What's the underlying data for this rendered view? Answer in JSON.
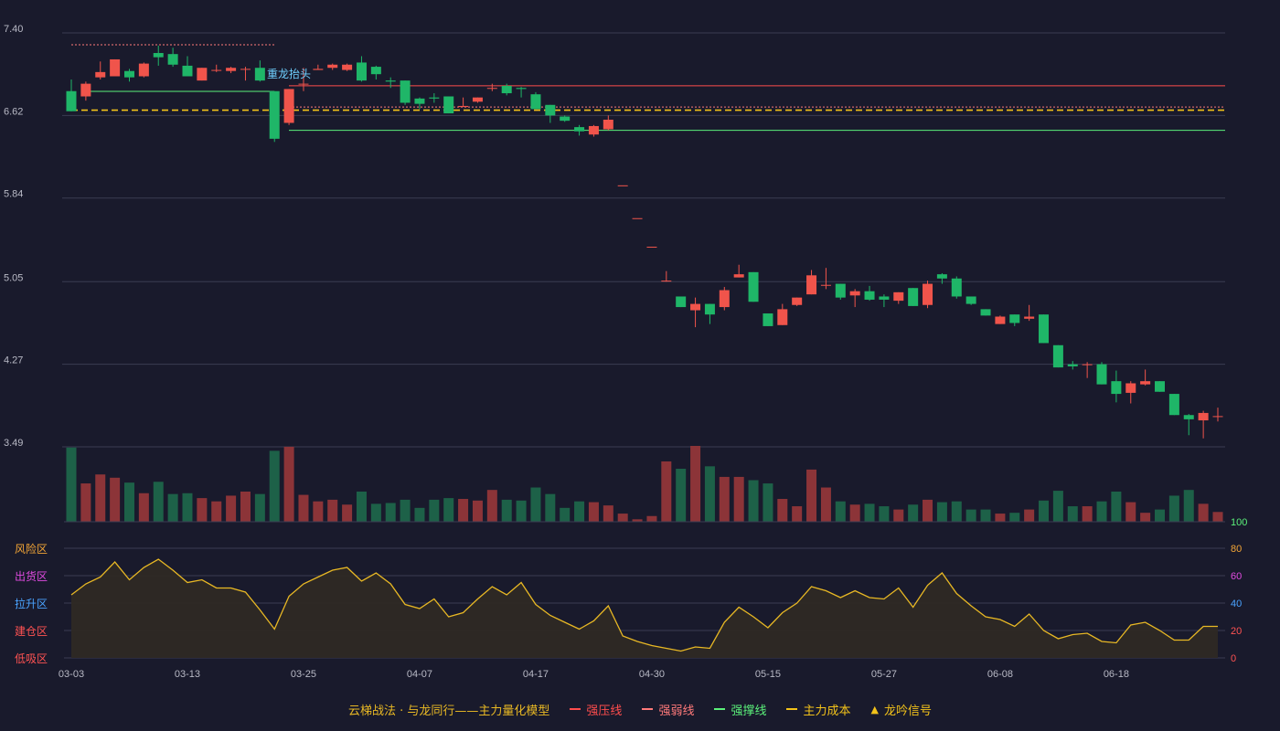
{
  "chart_data": {
    "type": "candlestick",
    "x_ticks": [
      "03-03",
      "03-13",
      "03-25",
      "04-07",
      "04-17",
      "04-30",
      "05-15",
      "05-27",
      "06-08",
      "06-18"
    ],
    "y_ticks": [
      "7.40",
      "6.62",
      "5.84",
      "5.05",
      "4.27",
      "3.49"
    ],
    "ylim": [
      3.49,
      7.4
    ],
    "candles": [
      [
        6.85,
        6.66,
        6.96,
        6.66
      ],
      [
        6.8,
        6.92,
        6.94,
        6.76
      ],
      [
        6.98,
        7.03,
        7.13,
        6.96
      ],
      [
        6.99,
        7.15,
        7.15,
        6.99
      ],
      [
        7.04,
        6.98,
        7.06,
        6.94
      ],
      [
        6.99,
        7.11,
        7.12,
        6.98
      ],
      [
        7.21,
        7.17,
        7.28,
        7.09
      ],
      [
        7.2,
        7.1,
        7.26,
        7.08
      ],
      [
        7.09,
        6.99,
        7.18,
        6.99
      ],
      [
        6.95,
        7.07,
        7.07,
        6.95
      ],
      [
        7.05,
        7.05,
        7.1,
        7.03
      ],
      [
        7.04,
        7.07,
        7.08,
        7.02
      ],
      [
        7.06,
        7.06,
        7.08,
        6.95
      ],
      [
        7.07,
        6.95,
        7.14,
        6.94
      ],
      [
        6.85,
        6.4,
        6.85,
        6.37
      ],
      [
        6.55,
        6.87,
        6.87,
        6.53
      ],
      [
        6.92,
        6.92,
        7.07,
        6.85
      ],
      [
        7.05,
        7.06,
        7.1,
        7.05
      ],
      [
        7.07,
        7.1,
        7.11,
        7.05
      ],
      [
        7.05,
        7.1,
        7.11,
        7.04
      ],
      [
        7.12,
        6.95,
        7.18,
        6.94
      ],
      [
        7.08,
        7.01,
        7.09,
        6.96
      ],
      [
        6.95,
        6.94,
        6.98,
        6.88
      ],
      [
        6.95,
        6.74,
        6.95,
        6.72
      ],
      [
        6.78,
        6.73,
        6.79,
        6.68
      ],
      [
        6.79,
        6.78,
        6.83,
        6.74
      ],
      [
        6.8,
        6.64,
        6.8,
        6.64
      ],
      [
        6.7,
        6.71,
        6.79,
        6.7
      ],
      [
        6.75,
        6.79,
        6.79,
        6.74
      ],
      [
        6.88,
        6.88,
        6.92,
        6.85
      ],
      [
        6.9,
        6.83,
        6.92,
        6.81
      ],
      [
        6.88,
        6.87,
        6.89,
        6.79
      ],
      [
        6.82,
        6.68,
        6.84,
        6.68
      ],
      [
        6.72,
        6.62,
        6.72,
        6.55
      ],
      [
        6.61,
        6.57,
        6.62,
        6.56
      ],
      [
        6.51,
        6.47,
        6.53,
        6.43
      ],
      [
        6.44,
        6.52,
        6.53,
        6.42
      ],
      [
        6.49,
        6.58,
        6.62,
        6.48
      ],
      [
        5.96,
        5.96,
        5.96,
        5.96
      ],
      [
        5.65,
        5.65,
        5.65,
        5.65
      ],
      [
        5.38,
        5.38,
        5.38,
        5.38
      ],
      [
        5.06,
        5.06,
        5.15,
        5.05
      ],
      [
        4.91,
        4.81,
        4.91,
        4.81
      ],
      [
        4.78,
        4.84,
        4.9,
        4.62
      ],
      [
        4.84,
        4.74,
        4.84,
        4.65
      ],
      [
        4.81,
        4.97,
        5.0,
        4.78
      ],
      [
        5.09,
        5.12,
        5.21,
        5.09
      ],
      [
        5.14,
        4.86,
        5.14,
        4.86
      ],
      [
        4.75,
        4.63,
        4.75,
        4.63
      ],
      [
        4.64,
        4.79,
        4.84,
        4.64
      ],
      [
        4.83,
        4.9,
        4.9,
        4.82
      ],
      [
        4.93,
        5.11,
        5.16,
        4.93
      ],
      [
        5.02,
        5.02,
        5.18,
        4.98
      ],
      [
        5.03,
        4.9,
        5.03,
        4.88
      ],
      [
        4.92,
        4.96,
        4.98,
        4.81
      ],
      [
        4.96,
        4.88,
        5.01,
        4.87
      ],
      [
        4.91,
        4.88,
        4.93,
        4.81
      ],
      [
        4.87,
        4.95,
        4.95,
        4.84
      ],
      [
        4.99,
        4.82,
        4.99,
        4.82
      ],
      [
        4.83,
        5.03,
        5.06,
        4.8
      ],
      [
        5.12,
        5.08,
        5.13,
        5.03
      ],
      [
        5.08,
        4.91,
        5.1,
        4.89
      ],
      [
        4.91,
        4.84,
        4.91,
        4.83
      ],
      [
        4.79,
        4.73,
        4.79,
        4.73
      ],
      [
        4.65,
        4.72,
        4.73,
        4.65
      ],
      [
        4.74,
        4.66,
        4.74,
        4.63
      ],
      [
        4.7,
        4.72,
        4.83,
        4.68
      ],
      [
        4.74,
        4.47,
        4.74,
        4.47
      ],
      [
        4.45,
        4.24,
        4.45,
        4.24
      ],
      [
        4.27,
        4.25,
        4.3,
        4.22
      ],
      [
        4.27,
        4.27,
        4.29,
        4.14
      ],
      [
        4.27,
        4.08,
        4.29,
        4.08
      ],
      [
        4.11,
        3.99,
        4.21,
        3.91
      ],
      [
        4.0,
        4.09,
        4.11,
        3.9
      ],
      [
        4.08,
        4.11,
        4.22,
        4.07
      ],
      [
        4.11,
        4.01,
        4.11,
        4.01
      ],
      [
        3.99,
        3.79,
        3.99,
        3.79
      ],
      [
        3.79,
        3.75,
        3.8,
        3.6
      ],
      [
        3.74,
        3.81,
        3.83,
        3.57
      ],
      [
        3.78,
        3.78,
        3.86,
        3.73
      ]
    ],
    "volume": [
      91,
      47,
      58,
      54,
      48,
      35,
      49,
      34,
      35,
      29,
      25,
      32,
      37,
      34,
      87,
      92,
      33,
      25,
      27,
      21,
      37,
      22,
      23,
      27,
      17,
      27,
      29,
      28,
      26,
      39,
      27,
      26,
      42,
      34,
      17,
      25,
      24,
      20,
      10,
      3,
      7,
      74,
      65,
      93,
      68,
      55,
      55,
      51,
      47,
      28,
      19,
      64,
      42,
      25,
      21,
      22,
      19,
      15,
      21,
      27,
      24,
      25,
      15,
      15,
      10,
      11,
      15,
      26,
      38,
      19,
      19,
      25,
      37,
      24,
      11,
      15,
      32,
      39,
      22,
      12
    ],
    "oscillator": {
      "ylim": [
        0,
        100
      ],
      "y_ticks": [
        "0",
        "20",
        "40",
        "60",
        "80",
        "100"
      ],
      "zones": [
        "风险区",
        "出货区",
        "拉升区",
        "建仓区",
        "低吸区"
      ],
      "values": [
        46,
        54,
        59,
        70,
        57,
        66,
        72,
        64,
        55,
        57,
        51,
        51,
        48,
        35,
        21,
        45,
        54,
        59,
        64,
        66,
        56,
        62,
        54,
        39,
        36,
        43,
        30,
        33,
        43,
        52,
        46,
        55,
        39,
        31,
        26,
        21,
        27,
        38,
        16,
        12,
        9,
        7,
        5,
        8,
        7,
        26,
        37,
        30,
        22,
        33,
        40,
        52,
        49,
        44,
        49,
        44,
        43,
        51,
        37,
        53,
        62,
        47,
        38,
        30,
        28,
        23,
        32,
        20,
        14,
        17,
        18,
        12,
        11,
        24,
        26,
        20,
        13,
        13,
        23,
        23
      ]
    },
    "lines": {
      "strong_resistance": {
        "label": "强压线",
        "value": 6.9
      },
      "weak_resistance": {
        "label": "强弱线",
        "value": 6.7
      },
      "support": {
        "label": "强撑线",
        "value": 6.48
      },
      "main_cost": {
        "label": "主力成本",
        "value": 6.67
      }
    },
    "annotations": [
      "重龙抬头"
    ],
    "legend": [
      {
        "label": "云梯战法 · 与龙同行——主力量化模型",
        "kind": "title"
      },
      {
        "label": "强压线",
        "kind": "solid"
      },
      {
        "label": "强弱线",
        "kind": "dashed"
      },
      {
        "label": "强撑线",
        "kind": "solid"
      },
      {
        "label": "主力成本",
        "kind": "dashed"
      },
      {
        "label": "龙吟信号",
        "kind": "triangle"
      }
    ],
    "volume_axis_label": "100"
  },
  "colors": {
    "background": "#191a2c",
    "up": "#f0544b",
    "down": "#1fb668",
    "volume_up": "#8c3438",
    "volume_down": "#1d6148",
    "grid": "#3b3c52",
    "axis_text": "#b9bac6",
    "strong_resistance": "#ff4d4d",
    "weak_resistance": "#ff7a7a",
    "support": "#5bf07a",
    "main_cost": "#f2c21a",
    "oscillator_line": "#e8b824",
    "oscillator_fill": "#2e2924",
    "zones": [
      "#f3a536",
      "#e04be0",
      "#4aa3ff",
      "#ff5252",
      "#ff5252"
    ],
    "annotation": "#6fd0ff",
    "legend_title": "#e8b824"
  }
}
